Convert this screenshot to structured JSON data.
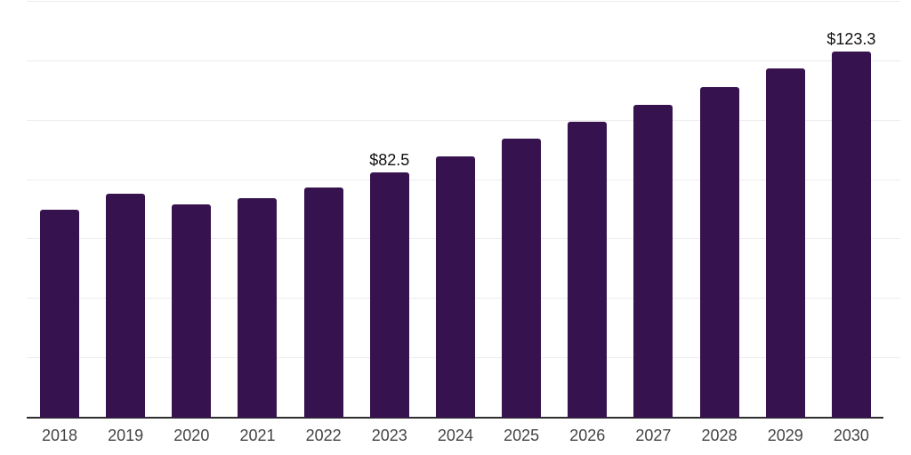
{
  "chart_data": {
    "type": "bar",
    "title": "",
    "xlabel": "",
    "ylabel": "",
    "categories": [
      "2018",
      "2019",
      "2020",
      "2021",
      "2022",
      "2023",
      "2024",
      "2025",
      "2026",
      "2027",
      "2028",
      "2029",
      "2030"
    ],
    "values": [
      70.0,
      75.4,
      71.7,
      74.0,
      77.5,
      82.5,
      88.0,
      94.0,
      99.7,
      105.3,
      111.4,
      117.6,
      123.3
    ],
    "data_labels": [
      "",
      "",
      "",
      "",
      "",
      "$82.5",
      "",
      "",
      "",
      "",
      "",
      "",
      "$123.3"
    ],
    "ylim": [
      0,
      140
    ],
    "grid_interval": 20,
    "grid": true,
    "legend": false,
    "y_axis_tick_labels_visible": false,
    "colors": {
      "bar": "#36124E",
      "gridline": "#ECECEC",
      "axis_line": "#2E2E2E",
      "tick_label": "#444444",
      "data_label": "#111111",
      "background": "#FFFFFF"
    }
  }
}
